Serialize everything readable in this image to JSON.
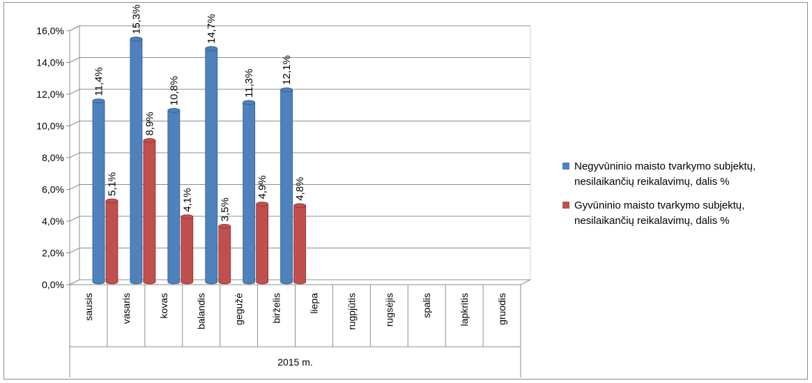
{
  "chart_data": {
    "type": "bar",
    "categories": [
      "sausis",
      "vasaris",
      "kovas",
      "balandis",
      "gegužė",
      "birželis",
      "liepa",
      "rugpjūtis",
      "rugsėjis",
      "spalis",
      "lapkritis",
      "gruodis"
    ],
    "group_label": "2015 m.",
    "series": [
      {
        "name": "Negyvūninio maisto tvarkymo subjektų, nesilaikančių reikalavimų, dalis %",
        "values": [
          11.4,
          15.3,
          10.8,
          14.7,
          11.3,
          12.1,
          null,
          null,
          null,
          null,
          null,
          null
        ],
        "labels": [
          "11,4%",
          "15,3%",
          "10,8%",
          "14,7%",
          "11,3%",
          "12,1%",
          "",
          "",
          "",
          "",
          "",
          ""
        ],
        "color": "#4f81bd",
        "color_dark": "#2c5a94"
      },
      {
        "name": "Gyvūninio maisto tvarkymo subjektų, nesilaikančių reikalavimų, dalis %",
        "values": [
          5.1,
          8.9,
          4.1,
          3.5,
          4.9,
          4.8,
          null,
          null,
          null,
          null,
          null,
          null
        ],
        "labels": [
          "5,1%",
          "8,9%",
          "4,1%",
          "3,5%",
          "4,9%",
          "4,8%",
          "",
          "",
          "",
          "",
          "",
          ""
        ],
        "color": "#c0504d",
        "color_dark": "#8e2f2d"
      }
    ],
    "y_ticks": [
      "0,0%",
      "2,0%",
      "4,0%",
      "6,0%",
      "8,0%",
      "10,0%",
      "12,0%",
      "14,0%",
      "16,0%"
    ],
    "ylim": [
      0,
      16
    ],
    "grid": true,
    "legend_position": "right"
  },
  "legend": {
    "items": [
      {
        "lines": [
          "Negyvūninio maisto tvarkymo subjektų,",
          "nesilaikančių reikalavimų, dalis %"
        ],
        "color": "#4f81bd"
      },
      {
        "lines": [
          "Gyvūninio maisto tvarkymo subjektų,",
          "nesilaikančių reikalavimų, dalis %"
        ],
        "color": "#c0504d"
      }
    ]
  }
}
